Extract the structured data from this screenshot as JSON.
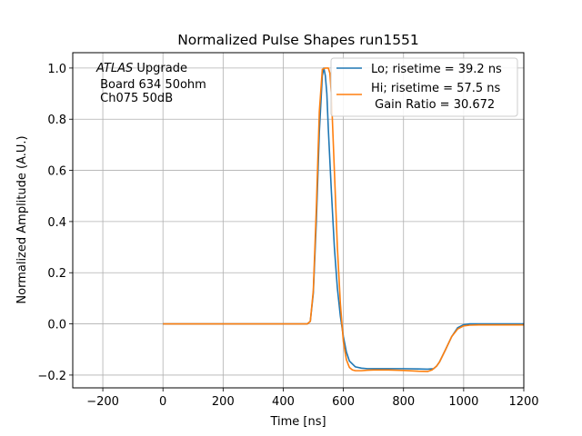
{
  "chart_data": {
    "type": "line",
    "title": "Normalized Pulse Shapes run1551",
    "xlabel": "Time [ns]",
    "ylabel": "Normalized Amplitude (A.U.)",
    "xlim": [
      -300,
      1200
    ],
    "ylim": [
      -0.25,
      1.06
    ],
    "xticks": [
      -200,
      0,
      200,
      400,
      600,
      800,
      1000,
      1200
    ],
    "xtick_labels": [
      "−200",
      "0",
      "200",
      "400",
      "600",
      "800",
      "1000",
      "1200"
    ],
    "yticks": [
      -0.2,
      0.0,
      0.2,
      0.4,
      0.6,
      0.8,
      1.0
    ],
    "ytick_labels": [
      "−0.2",
      "0.0",
      "0.2",
      "0.4",
      "0.6",
      "0.8",
      "1.0"
    ],
    "grid": true,
    "legend_position": "top-right",
    "annotation": {
      "italic": "ATLAS",
      "line1_rest": " Upgrade",
      "line2": " Board 634 50ohm",
      "line3": " Ch075 50dB"
    },
    "series": [
      {
        "name": "Lo; risetime = 39.2 ns",
        "color": "#1f77b4",
        "x": [
          0,
          100,
          200,
          300,
          400,
          480,
          490,
          500,
          510,
          520,
          530,
          535,
          540,
          545,
          550,
          560,
          570,
          580,
          590,
          600,
          610,
          620,
          640,
          660,
          680,
          700,
          750,
          800,
          850,
          880,
          900,
          910,
          920,
          940,
          960,
          980,
          1000,
          1020,
          1050,
          1100,
          1150,
          1200
        ],
        "y": [
          0,
          0,
          0,
          0,
          0,
          0,
          0.01,
          0.12,
          0.4,
          0.75,
          0.97,
          1.0,
          0.97,
          0.9,
          0.76,
          0.52,
          0.3,
          0.14,
          0.03,
          -0.05,
          -0.11,
          -0.145,
          -0.168,
          -0.173,
          -0.175,
          -0.175,
          -0.175,
          -0.175,
          -0.176,
          -0.177,
          -0.175,
          -0.165,
          -0.148,
          -0.1,
          -0.05,
          -0.015,
          -0.003,
          0,
          0,
          0,
          0,
          0
        ]
      },
      {
        "name": "Hi; risetime = 57.5 ns",
        "color": "#ff7f0e",
        "x": [
          0,
          100,
          200,
          300,
          400,
          480,
          490,
          500,
          510,
          520,
          530,
          540,
          550,
          555,
          560,
          570,
          580,
          590,
          600,
          610,
          620,
          630,
          640,
          660,
          680,
          700,
          750,
          800,
          850,
          880,
          895,
          910,
          920,
          940,
          960,
          980,
          1000,
          1020,
          1050,
          1100,
          1150,
          1200
        ],
        "y": [
          0,
          0,
          0,
          0,
          0,
          0,
          0.01,
          0.13,
          0.45,
          0.83,
          0.995,
          1.0,
          1.0,
          0.98,
          0.9,
          0.6,
          0.3,
          0.08,
          -0.07,
          -0.14,
          -0.17,
          -0.18,
          -0.183,
          -0.183,
          -0.181,
          -0.18,
          -0.18,
          -0.182,
          -0.185,
          -0.186,
          -0.18,
          -0.165,
          -0.148,
          -0.1,
          -0.05,
          -0.02,
          -0.008,
          -0.005,
          -0.004,
          -0.004,
          -0.004,
          -0.004
        ]
      }
    ],
    "legend_extra": " Gain Ratio = 30.672"
  }
}
